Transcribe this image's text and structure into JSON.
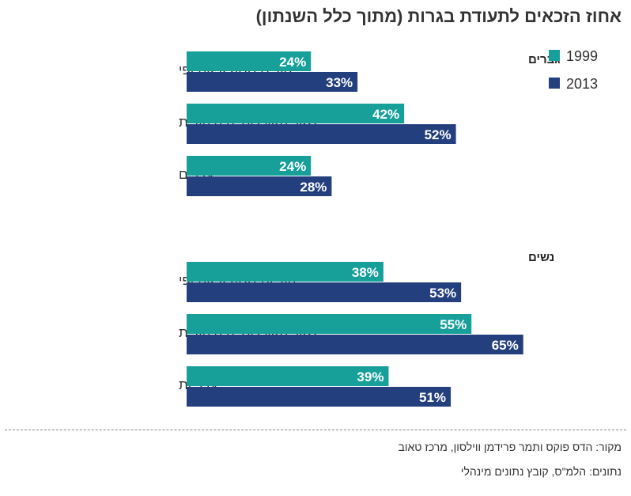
{
  "title": "אחוז הזכאים לתעודת בגרות (מתוך כלל השנתון)",
  "legend": {
    "items": [
      {
        "label": "1999",
        "color": "#17a09a"
      },
      {
        "label": "2013",
        "color": "#243f7e"
      }
    ]
  },
  "source_lines": [
    "מקור: הדס פוקס ותמר פרידמן ווילסון, מרכז טאוב",
    "נתונים: הלמ\"ס, קובץ נתונים מינהלי"
  ],
  "chart_data": {
    "type": "bar",
    "orientation": "horizontal",
    "title": "אחוז הזכאים לתעודת בגרות (מתוך כלל השנתון)",
    "series_names": [
      "1999",
      "2013"
    ],
    "series_colors": [
      "#17a09a",
      "#243f7e"
    ],
    "value_suffix": "%",
    "xlim": [
      0,
      100
    ],
    "groups": [
      {
        "label": "גברים",
        "categories": [
          {
            "label": "יהודים ממוצא אתיופי",
            "values": [
              24,
              33
            ]
          },
          {
            "label": "שאר האוכלוסייה היהודית",
            "values": [
              42,
              52
            ]
          },
          {
            "label": "ערבים",
            "values": [
              24,
              28
            ]
          }
        ]
      },
      {
        "label": "נשים",
        "categories": [
          {
            "label": "יהודיות ממוצא אתיופי",
            "values": [
              38,
              53
            ]
          },
          {
            "label": "שאר האוכלוסייה היהודית",
            "values": [
              55,
              65
            ]
          },
          {
            "label": "ערביות",
            "values": [
              39,
              51
            ]
          }
        ]
      }
    ]
  }
}
